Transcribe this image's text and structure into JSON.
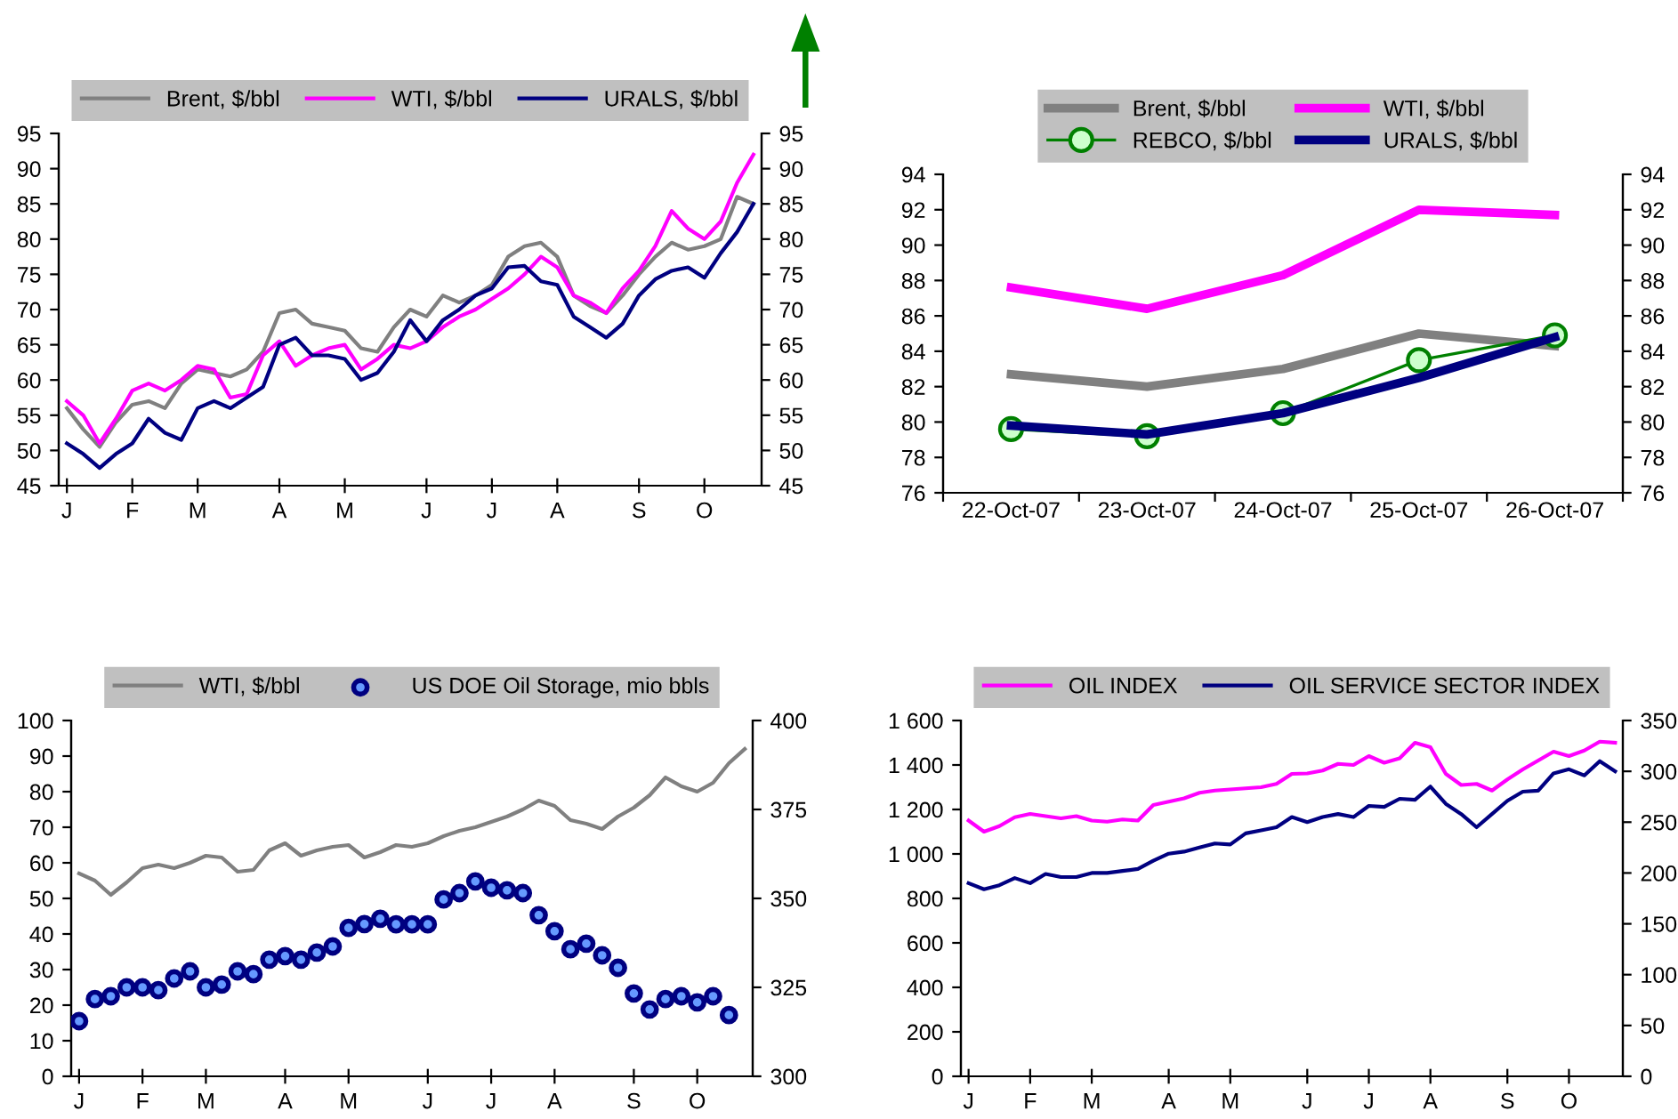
{
  "chart_data": [
    {
      "type": "line",
      "legend": "top",
      "grid": false,
      "categories": [
        "J",
        null,
        null,
        null,
        "F",
        null,
        null,
        null,
        "M",
        null,
        null,
        null,
        null,
        "A",
        null,
        null,
        null,
        "M",
        null,
        null,
        null,
        null,
        "J",
        null,
        null,
        null,
        "J",
        null,
        null,
        null,
        "A",
        null,
        null,
        null,
        null,
        "S",
        null,
        null,
        null,
        "O",
        null,
        null,
        null
      ],
      "ylim": [
        45,
        95
      ],
      "yticks": [
        45,
        50,
        55,
        60,
        65,
        70,
        75,
        80,
        85,
        90,
        95
      ],
      "y2lim": [
        45,
        95
      ],
      "y2ticks": [
        45,
        50,
        55,
        60,
        65,
        70,
        75,
        80,
        85,
        90,
        95
      ],
      "series": [
        {
          "name": "Brent, $/bbl",
          "color": "#808080",
          "values": [
            56,
            53,
            50.5,
            54,
            56.5,
            57,
            56,
            59.5,
            61.5,
            61,
            60.5,
            61.5,
            64,
            69.5,
            70,
            68,
            67.5,
            67,
            64.5,
            64,
            67.5,
            70,
            69,
            72,
            71,
            72,
            73.5,
            77.5,
            79,
            79.5,
            77.5,
            72,
            70.5,
            69.5,
            72,
            75,
            77.5,
            79.5,
            78.5,
            79,
            80,
            86,
            85
          ]
        },
        {
          "name": "WTI, $/bbl",
          "color": "#ff00ff",
          "values": [
            57,
            55,
            51,
            54.5,
            58.5,
            59.5,
            58.5,
            60,
            62,
            61.5,
            57.5,
            58,
            63.5,
            65.5,
            62,
            63.5,
            64.5,
            65,
            61.5,
            63,
            65,
            64.5,
            65.5,
            67.5,
            69,
            70,
            71.5,
            73,
            75,
            77.5,
            76,
            72,
            71,
            69.5,
            73,
            75.5,
            79,
            84,
            81.5,
            80,
            82.5,
            88,
            92
          ]
        },
        {
          "name": "URALS, $/bbl",
          "color": "#000080",
          "values": [
            51,
            49.5,
            47.5,
            49.5,
            51,
            54.5,
            52.5,
            51.5,
            56,
            57,
            56,
            57.5,
            59,
            65,
            66,
            63.5,
            63.5,
            63,
            60,
            61,
            64,
            68.5,
            65.5,
            68.5,
            70,
            72,
            73,
            76,
            76.2,
            74,
            73.5,
            69,
            67.5,
            66,
            68,
            72,
            74.3,
            75.5,
            76,
            74.5,
            78,
            81,
            85
          ]
        }
      ]
    },
    {
      "type": "line",
      "legend": "top",
      "grid": false,
      "categories": [
        "22-Oct-07",
        "23-Oct-07",
        "24-Oct-07",
        "25-Oct-07",
        "26-Oct-07"
      ],
      "ylim": [
        76,
        94
      ],
      "yticks": [
        76,
        78,
        80,
        82,
        84,
        86,
        88,
        90,
        92,
        94
      ],
      "y2lim": [
        76,
        94
      ],
      "y2ticks": [
        76,
        78,
        80,
        82,
        84,
        86,
        88,
        90,
        92,
        94
      ],
      "series": [
        {
          "name": "Brent, $/bbl",
          "color": "#808080",
          "values": [
            82.7,
            82.0,
            83.0,
            85.0,
            84.3
          ]
        },
        {
          "name": "WTI, $/bbl",
          "color": "#ff00ff",
          "values": [
            87.6,
            86.4,
            88.3,
            92.0,
            91.7
          ]
        },
        {
          "name": "REBCO, $/bbl",
          "color": "#008000",
          "marker": "circle",
          "values": [
            79.6,
            79.2,
            80.5,
            83.5,
            84.9
          ]
        },
        {
          "name": "URALS, $/bbl",
          "color": "#000080",
          "values": [
            79.8,
            79.3,
            80.5,
            82.5,
            84.8
          ]
        }
      ]
    },
    {
      "type": "line",
      "legend": "top",
      "grid": false,
      "categories": [
        "J",
        null,
        null,
        null,
        "F",
        null,
        null,
        null,
        "M",
        null,
        null,
        null,
        null,
        "A",
        null,
        null,
        null,
        "M",
        null,
        null,
        null,
        null,
        "J",
        null,
        null,
        null,
        "J",
        null,
        null,
        null,
        "A",
        null,
        null,
        null,
        null,
        "S",
        null,
        null,
        null,
        "O",
        null,
        null,
        null
      ],
      "ylim": [
        0,
        100
      ],
      "yticks": [
        0,
        10,
        20,
        30,
        40,
        50,
        60,
        70,
        80,
        90,
        100
      ],
      "y2lim": [
        300,
        400
      ],
      "y2ticks": [
        300,
        325,
        350,
        375,
        400
      ],
      "series": [
        {
          "name": "WTI, $/bbl",
          "color": "#808080",
          "values": [
            57,
            55,
            51,
            54.5,
            58.5,
            59.5,
            58.5,
            60,
            62,
            61.5,
            57.5,
            58,
            63.5,
            65.5,
            62,
            63.5,
            64.5,
            65,
            61.5,
            63,
            65,
            64.5,
            65.5,
            67.5,
            69,
            70,
            71.5,
            73,
            75,
            77.5,
            76,
            72,
            71,
            69.5,
            73,
            75.5,
            79,
            84,
            81.5,
            80,
            82.5,
            88,
            92
          ]
        },
        {
          "name": "US DOE Oil Storage, mio bbls",
          "color": "#000080",
          "type": "scatter",
          "marker": "circle",
          "axis": "y2",
          "values": [
            315.5,
            321.7,
            322.5,
            325,
            325,
            324.2,
            327.5,
            329.5,
            325,
            325.8,
            329.5,
            328.7,
            332.8,
            333.8,
            332.8,
            334.8,
            336.5,
            341.7,
            342.8,
            344.3,
            342.7,
            342.7,
            342.7,
            349.7,
            351.5,
            354.8,
            353,
            352.3,
            351.5,
            345.3,
            340.8,
            335.7,
            337.3,
            334,
            330.5,
            323.3,
            318.8,
            321.7,
            322.5,
            320.8,
            322.5,
            317.2,
            null
          ]
        }
      ]
    },
    {
      "type": "line",
      "legend": "top",
      "grid": false,
      "categories": [
        "J",
        null,
        null,
        null,
        "F",
        null,
        null,
        null,
        "M",
        null,
        null,
        null,
        null,
        "A",
        null,
        null,
        null,
        "M",
        null,
        null,
        null,
        null,
        "J",
        null,
        null,
        null,
        "J",
        null,
        null,
        null,
        "A",
        null,
        null,
        null,
        null,
        "S",
        null,
        null,
        null,
        "O",
        null,
        null,
        null
      ],
      "ylim": [
        0,
        1600
      ],
      "yticks": [
        0,
        200,
        400,
        600,
        800,
        {
          "value": 1000,
          "label": "1 000"
        },
        {
          "value": 1200,
          "label": "1 200"
        },
        {
          "value": 1400,
          "label": "1 400"
        },
        {
          "value": 1600,
          "label": "1 600"
        }
      ],
      "y2lim": [
        0,
        350
      ],
      "y2ticks": [
        0,
        50,
        100,
        150,
        200,
        250,
        300,
        350
      ],
      "series": [
        {
          "name": "OIL INDEX",
          "color": "#ff00ff",
          "values": [
            1150,
            1100,
            1125,
            1165,
            1180,
            1170,
            1160,
            1170,
            1150,
            1145,
            1155,
            1150,
            1220,
            1235,
            1250,
            1275,
            1285,
            1290,
            1295,
            1300,
            1315,
            1360,
            1362,
            1375,
            1405,
            1400,
            1440,
            1410,
            1430,
            1500,
            1480,
            1360,
            1310,
            1315,
            1285,
            1335,
            1380,
            1420,
            1460,
            1440,
            1465,
            1505,
            1500
          ]
        },
        {
          "name": "OIL SERVICE SECTOR INDEX",
          "color": "#000080",
          "axis": "y2",
          "values": [
            190,
            184,
            188,
            195,
            190,
            199,
            196,
            196,
            200,
            200,
            202,
            204,
            212,
            219,
            221,
            225,
            229,
            228,
            239,
            242,
            245,
            255,
            250,
            255,
            258,
            255,
            266,
            265,
            273,
            272,
            285,
            268,
            258,
            245,
            258,
            271,
            280,
            281,
            298,
            302,
            296,
            310,
            300
          ]
        }
      ]
    }
  ]
}
